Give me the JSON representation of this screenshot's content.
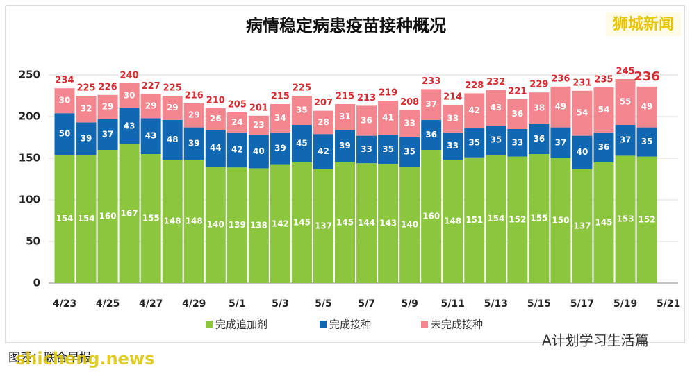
{
  "chart_data": {
    "type": "stacked_bar",
    "title": "病情稳定病患疫苗接种概况",
    "source": "图表：联合早报",
    "brand": "狮城新闻",
    "watermark": "shicheng.news",
    "account": "A计划学习生活篇",
    "xtick_labels": [
      "4/23",
      "4/25",
      "4/27",
      "4/29",
      "5/1",
      "5/3",
      "5/5",
      "5/7",
      "5/9",
      "5/11",
      "5/13",
      "5/15",
      "5/17",
      "5/19",
      "5/21"
    ],
    "series": [
      {
        "name": "完成追加剂",
        "color": "#8cc63f",
        "values": [
          154,
          154,
          160,
          167,
          155,
          148,
          148,
          140,
          139,
          138,
          142,
          145,
          137,
          145,
          144,
          143,
          140,
          160,
          148,
          151,
          154,
          152,
          155,
          150,
          137,
          145,
          153,
          152
        ]
      },
      {
        "name": "完成接种",
        "color": "#1068b3",
        "values": [
          50,
          39,
          37,
          43,
          43,
          48,
          39,
          44,
          42,
          40,
          39,
          45,
          42,
          39,
          33,
          35,
          35,
          36,
          33,
          35,
          35,
          33,
          36,
          37,
          40,
          36,
          37,
          35
        ]
      },
      {
        "name": "未完成接种",
        "color": "#f3868e",
        "values": [
          30,
          32,
          29,
          30,
          29,
          29,
          29,
          26,
          24,
          23,
          34,
          35,
          28,
          31,
          36,
          41,
          33,
          37,
          33,
          42,
          43,
          36,
          38,
          49,
          54,
          54,
          55,
          49
        ]
      }
    ],
    "totals": [
      234,
      225,
      226,
      240,
      227,
      225,
      216,
      210,
      205,
      201,
      215,
      225,
      207,
      215,
      213,
      219,
      208,
      233,
      214,
      228,
      232,
      221,
      229,
      236,
      231,
      235,
      245,
      236
    ],
    "ylim": [
      0,
      260
    ],
    "yticks": [
      0,
      50,
      100,
      150,
      200,
      250
    ],
    "grid": true
  }
}
